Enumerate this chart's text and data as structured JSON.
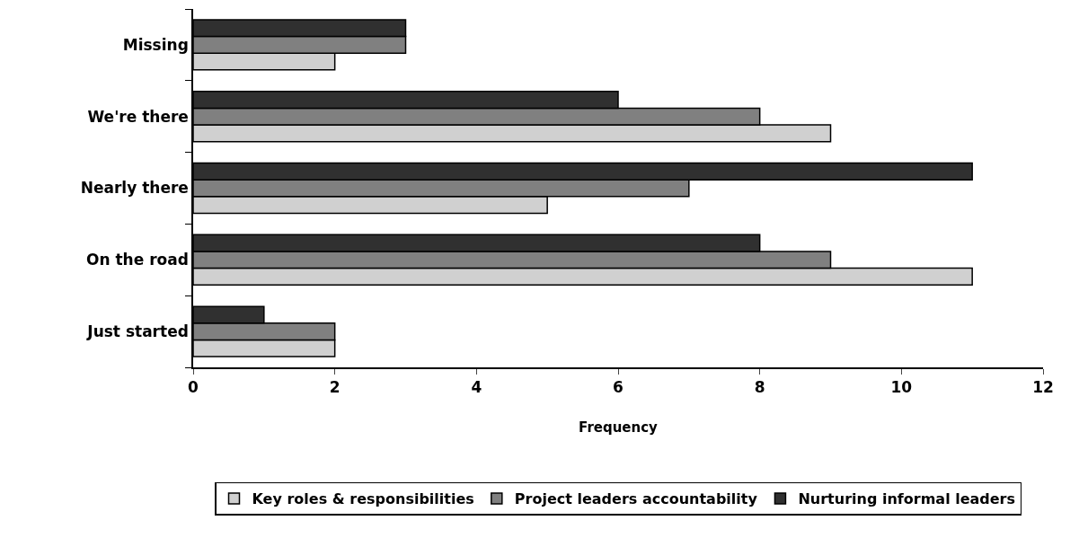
{
  "chart_data": {
    "type": "bar",
    "orientation": "horizontal",
    "categories": [
      "Missing",
      "We're there",
      "Nearly there",
      "On the road",
      "Just started"
    ],
    "series": [
      {
        "name": "Key roles & responsibilities",
        "color": "#d0d0d0",
        "values": [
          2,
          9,
          5,
          11,
          2
        ]
      },
      {
        "name": "Project leaders accountability",
        "color": "#808080",
        "values": [
          3,
          8,
          7,
          9,
          2
        ]
      },
      {
        "name": "Nurturing informal leaders",
        "color": "#303030",
        "values": [
          3,
          6,
          11,
          8,
          1
        ]
      }
    ],
    "xlabel": "Frequency",
    "xlim": [
      0,
      12
    ],
    "xticks": [
      0,
      2,
      4,
      6,
      8,
      10,
      12
    ],
    "grid": false,
    "legend": "bottom"
  }
}
